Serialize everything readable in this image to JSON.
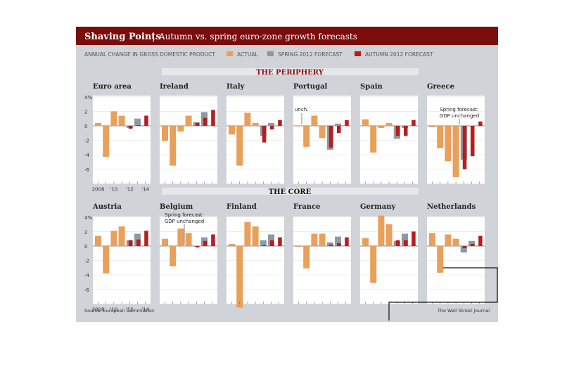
{
  "header": {
    "title": "Shaving Points",
    "subtitle": "Autumn vs. spring euro-zone growth forecasts",
    "measure": "ANNUAL CHANGE IN GROSS DOMESTIC PRODUCT"
  },
  "legend": {
    "actual": "ACTUAL",
    "spring": "SPRING 2012 FORECAST",
    "autumn": "AUTUMN 2012 FORECAST"
  },
  "colors": {
    "actual": "#e8a05a",
    "spring": "#8d9aa3",
    "autumn": "#b81c1c",
    "panel": "#ffffff",
    "frame": "#c9ccd0",
    "header": "#7a0c0c"
  },
  "footer": {
    "source": "Source: European Commission",
    "credit": "The Wall Street Journal"
  },
  "chart_data": {
    "type": "bar",
    "x_tick_labels": [
      "2008",
      "'10",
      "'12",
      "'14"
    ],
    "y_ticks": [
      "4%",
      "2",
      "0",
      "-2",
      "-4",
      "-6"
    ],
    "ylim": [
      -8,
      4
    ],
    "groups": [
      {
        "title": "THE PERIPHERY",
        "panels": [
          {
            "name": "Euro area",
            "actual": [
              0.4,
              -4.3,
              2.0,
              1.4
            ],
            "spring": [
              -0.3,
              1.0
            ],
            "autumn": [
              -0.4,
              0.1,
              1.4
            ]
          },
          {
            "name": "Ireland",
            "actual": [
              -2.1,
              -5.5,
              -0.8,
              1.4
            ],
            "spring": [
              0.5,
              1.9
            ],
            "autumn": [
              0.4,
              1.1,
              2.2
            ]
          },
          {
            "name": "Italy",
            "actual": [
              -1.2,
              -5.5,
              1.8,
              0.4
            ],
            "spring": [
              -1.4,
              0.4
            ],
            "autumn": [
              -2.3,
              -0.5,
              0.8
            ]
          },
          {
            "name": "Portugal",
            "actual": [
              0.0,
              -2.9,
              1.4,
              -1.7
            ],
            "spring": [
              -3.3,
              0.3
            ],
            "autumn": [
              -3.0,
              -1.0,
              0.8
            ]
          },
          {
            "name": "Spain",
            "actual": [
              0.9,
              -3.7,
              -0.3,
              0.4
            ],
            "spring": [
              -1.8,
              -0.3
            ],
            "autumn": [
              -1.4,
              -1.4,
              0.8
            ]
          },
          {
            "name": "Greece",
            "actual": [
              -0.2,
              -3.1,
              -4.9,
              -7.1
            ],
            "spring": [
              -4.7,
              0.0
            ],
            "autumn": [
              -6.0,
              -4.2,
              0.6
            ]
          }
        ],
        "notes": [
          {
            "panel": 3,
            "text": "unch."
          },
          {
            "panel": 5,
            "text": "Spring forecast:"
          },
          {
            "panel": 5,
            "text": "GDP unchanged"
          }
        ]
      },
      {
        "title": "THE CORE",
        "panels": [
          {
            "name": "Austria",
            "actual": [
              1.4,
              -3.8,
              2.1,
              2.7
            ],
            "spring": [
              0.8,
              1.7
            ],
            "autumn": [
              0.8,
              0.9,
              2.1
            ]
          },
          {
            "name": "Belgium",
            "actual": [
              1.0,
              -2.8,
              2.4,
              1.8
            ],
            "spring": [
              0.0,
              1.2
            ],
            "autumn": [
              -0.2,
              0.7,
              1.6
            ]
          },
          {
            "name": "Finland",
            "actual": [
              0.3,
              -8.5,
              3.3,
              2.7
            ],
            "spring": [
              0.8,
              1.6
            ],
            "autumn": [
              0.1,
              0.8,
              1.2
            ]
          },
          {
            "name": "France",
            "actual": [
              -0.1,
              -3.1,
              1.7,
              1.7
            ],
            "spring": [
              0.5,
              1.3
            ],
            "autumn": [
              0.2,
              0.4,
              1.2
            ]
          },
          {
            "name": "Germany",
            "actual": [
              1.1,
              -5.1,
              4.2,
              3.0
            ],
            "spring": [
              0.7,
              1.7
            ],
            "autumn": [
              0.8,
              0.8,
              2.0
            ]
          },
          {
            "name": "Netherlands",
            "actual": [
              1.8,
              -3.7,
              1.6,
              1.0
            ],
            "spring": [
              -0.9,
              0.7
            ],
            "autumn": [
              -0.3,
              0.3,
              1.4
            ]
          }
        ],
        "notes": [
          {
            "panel": 1,
            "text": "Spring forecast:"
          },
          {
            "panel": 1,
            "text": "GDP unchanged"
          }
        ]
      }
    ]
  }
}
